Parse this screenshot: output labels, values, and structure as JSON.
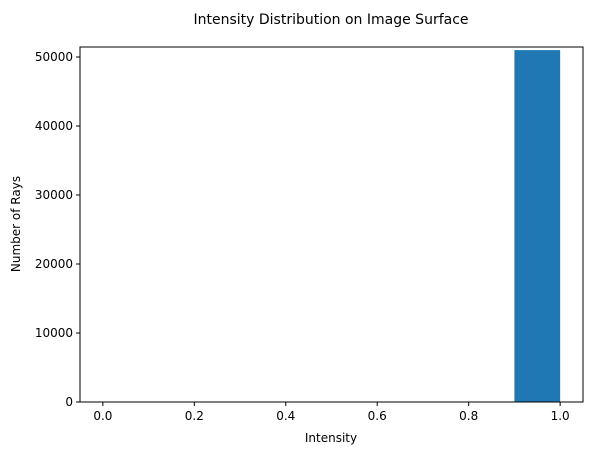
{
  "chart_data": {
    "type": "histogram",
    "title": "Intensity Distribution on Image Surface",
    "x_label": "Intensity",
    "y_label": "Number of Rays",
    "bins": [
      0.0,
      0.1,
      0.2,
      0.3,
      0.4,
      0.5,
      0.6,
      0.7,
      0.8,
      0.9,
      1.0
    ],
    "values": [
      0,
      0,
      0,
      0,
      0,
      0,
      0,
      0,
      0,
      51000
    ],
    "color": "#1f77b4",
    "xlim": [
      -0.05,
      1.05
    ],
    "xticks": [
      {
        "value": 0,
        "label": "0.0"
      },
      0.2,
      0.4,
      0.6,
      0.8,
      {
        "value": 1,
        "label": "1.0"
      }
    ],
    "ylim": [
      0,
      51450
    ],
    "yticks": [
      0,
      10000,
      20000,
      30000,
      40000,
      50000
    ],
    "grid": false
  }
}
